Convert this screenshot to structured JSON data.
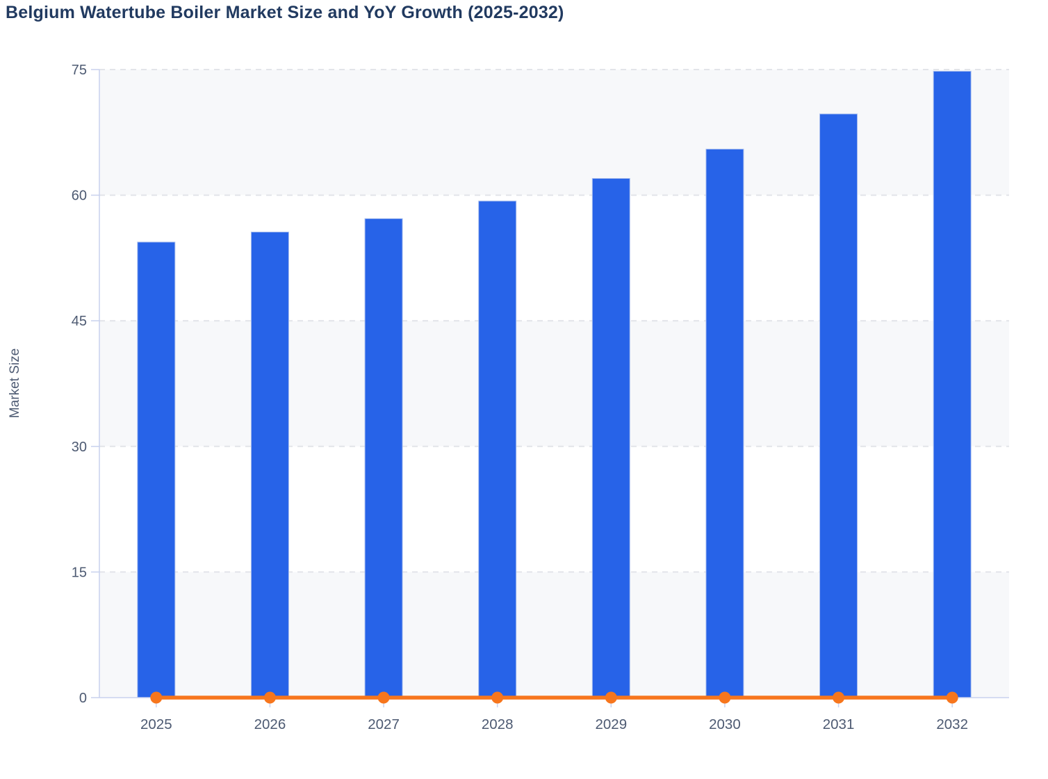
{
  "title": "Belgium Watertube Boiler Market Size and YoY Growth (2025-2032)",
  "chart_data": {
    "type": "bar",
    "title": "Belgium Watertube Boiler Market Size and YoY Growth (2025-2032)",
    "categories": [
      "2025",
      "2026",
      "2027",
      "2028",
      "2029",
      "2030",
      "2031",
      "2032"
    ],
    "series": [
      {
        "name": "Market Size",
        "type": "bar",
        "values": [
          54.4,
          55.6,
          57.2,
          59.3,
          62.0,
          65.5,
          69.7,
          74.8
        ]
      },
      {
        "name": "YoY Growth",
        "type": "line",
        "values": [
          0,
          0,
          0,
          0,
          0,
          0,
          0,
          0
        ]
      }
    ],
    "xlabel": "",
    "ylabel": "Market Size",
    "ylim": [
      0,
      75
    ],
    "yticks": [
      0,
      15,
      30,
      45,
      60,
      75
    ],
    "grid": true,
    "legend_position": "none"
  },
  "colors": {
    "bar": "#2763e8",
    "bar_edge": "#aabfee",
    "line": "#f7761d",
    "axis": "#c8d1ee",
    "gridline": "#e2e4e9",
    "band_light": "#f7f8fa",
    "band_white": "#ffffff",
    "tick_label": "#4d5a72",
    "title_text": "#213a60"
  }
}
